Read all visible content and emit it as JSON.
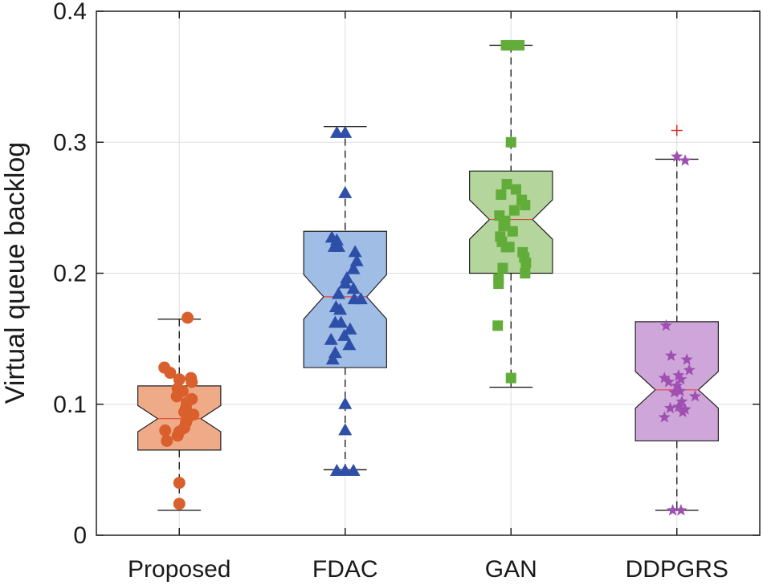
{
  "chart_data": {
    "type": "boxplot",
    "title": "",
    "xlabel": "",
    "ylabel": "Virtual queue backlog",
    "ylim": [
      0,
      0.4
    ],
    "yticks": [
      0,
      0.1,
      0.2,
      0.3,
      0.4
    ],
    "ytick_labels": [
      "0",
      "0.1",
      "0.2",
      "0.3",
      "0.4"
    ],
    "grid": true,
    "notched": true,
    "categories": [
      "Proposed",
      "FDAC",
      "GAN",
      "DDPGRS"
    ],
    "series": [
      {
        "category": "Proposed",
        "marker": "circle",
        "color": "#d9602c",
        "box_fill": "#efab88",
        "whisker_low": 0.019,
        "q1": 0.065,
        "median": 0.089,
        "q3": 0.114,
        "whisker_high": 0.165,
        "notch_low": 0.079,
        "notch_high": 0.099,
        "outliers": [],
        "points": [
          {
            "dx": 0.1,
            "y": 0.166
          },
          {
            "dx": -0.18,
            "y": 0.128
          },
          {
            "dx": -0.11,
            "y": 0.124
          },
          {
            "dx": 0.14,
            "y": 0.12
          },
          {
            "dx": 0.0,
            "y": 0.119
          },
          {
            "dx": 0.15,
            "y": 0.117
          },
          {
            "dx": -0.02,
            "y": 0.112
          },
          {
            "dx": 0.04,
            "y": 0.11
          },
          {
            "dx": -0.03,
            "y": 0.106
          },
          {
            "dx": 0.15,
            "y": 0.104
          },
          {
            "dx": 0.09,
            "y": 0.101
          },
          {
            "dx": 0.08,
            "y": 0.097
          },
          {
            "dx": 0.06,
            "y": 0.094
          },
          {
            "dx": 0.17,
            "y": 0.092
          },
          {
            "dx": 0.09,
            "y": 0.088
          },
          {
            "dx": 0.08,
            "y": 0.086
          },
          {
            "dx": 0.06,
            "y": 0.082
          },
          {
            "dx": -0.17,
            "y": 0.08
          },
          {
            "dx": 0.0,
            "y": 0.079
          },
          {
            "dx": -0.02,
            "y": 0.076
          },
          {
            "dx": -0.15,
            "y": 0.072
          },
          {
            "dx": 0.0,
            "y": 0.04
          },
          {
            "dx": 0.0,
            "y": 0.024
          }
        ]
      },
      {
        "category": "FDAC",
        "marker": "triangle",
        "color": "#2e4fa8",
        "box_fill": "#a0bde6",
        "whisker_low": 0.05,
        "q1": 0.128,
        "median": 0.182,
        "q3": 0.232,
        "whisker_high": 0.312,
        "notch_low": 0.165,
        "notch_high": 0.199,
        "outliers": [],
        "points": [
          {
            "dx": -0.1,
            "y": 0.307
          },
          {
            "dx": 0.0,
            "y": 0.307
          },
          {
            "dx": 0.0,
            "y": 0.261
          },
          {
            "dx": -0.16,
            "y": 0.227
          },
          {
            "dx": -0.1,
            "y": 0.225
          },
          {
            "dx": -0.13,
            "y": 0.22
          },
          {
            "dx": -0.08,
            "y": 0.22
          },
          {
            "dx": 0.12,
            "y": 0.216
          },
          {
            "dx": 0.14,
            "y": 0.209
          },
          {
            "dx": 0.1,
            "y": 0.203
          },
          {
            "dx": 0.02,
            "y": 0.196
          },
          {
            "dx": 0.0,
            "y": 0.192
          },
          {
            "dx": 0.1,
            "y": 0.188
          },
          {
            "dx": -0.08,
            "y": 0.184
          },
          {
            "dx": 0.11,
            "y": 0.18
          },
          {
            "dx": 0.19,
            "y": 0.18
          },
          {
            "dx": -0.11,
            "y": 0.174
          },
          {
            "dx": -0.06,
            "y": 0.172
          },
          {
            "dx": -0.12,
            "y": 0.162
          },
          {
            "dx": -0.05,
            "y": 0.162
          },
          {
            "dx": 0.06,
            "y": 0.157
          },
          {
            "dx": -0.01,
            "y": 0.152
          },
          {
            "dx": -0.17,
            "y": 0.149
          },
          {
            "dx": 0.05,
            "y": 0.145
          },
          {
            "dx": -0.12,
            "y": 0.139
          },
          {
            "dx": -0.15,
            "y": 0.134
          },
          {
            "dx": 0.0,
            "y": 0.1
          },
          {
            "dx": 0.0,
            "y": 0.08
          },
          {
            "dx": -0.1,
            "y": 0.049
          },
          {
            "dx": 0.0,
            "y": 0.049
          },
          {
            "dx": 0.1,
            "y": 0.049
          }
        ]
      },
      {
        "category": "GAN",
        "marker": "square",
        "color": "#62ad3a",
        "box_fill": "#b4d59b",
        "whisker_low": 0.113,
        "q1": 0.2,
        "median": 0.241,
        "q3": 0.278,
        "whisker_high": 0.374,
        "notch_low": 0.226,
        "notch_high": 0.256,
        "outliers": [],
        "points": [
          {
            "dx": -0.06,
            "y": 0.374
          },
          {
            "dx": -0.02,
            "y": 0.374
          },
          {
            "dx": 0.1,
            "y": 0.374
          },
          {
            "dx": 0.0,
            "y": 0.3
          },
          {
            "dx": -0.05,
            "y": 0.268
          },
          {
            "dx": 0.06,
            "y": 0.264
          },
          {
            "dx": -0.12,
            "y": 0.26
          },
          {
            "dx": 0.13,
            "y": 0.256
          },
          {
            "dx": 0.17,
            "y": 0.252
          },
          {
            "dx": 0.04,
            "y": 0.248
          },
          {
            "dx": -0.14,
            "y": 0.244
          },
          {
            "dx": -0.07,
            "y": 0.24
          },
          {
            "dx": -0.09,
            "y": 0.236
          },
          {
            "dx": 0.02,
            "y": 0.232
          },
          {
            "dx": -0.13,
            "y": 0.228
          },
          {
            "dx": -0.11,
            "y": 0.224
          },
          {
            "dx": -0.06,
            "y": 0.22
          },
          {
            "dx": -0.02,
            "y": 0.22
          },
          {
            "dx": 0.14,
            "y": 0.216
          },
          {
            "dx": 0.16,
            "y": 0.212
          },
          {
            "dx": 0.18,
            "y": 0.208
          },
          {
            "dx": 0.17,
            "y": 0.2
          },
          {
            "dx": -0.1,
            "y": 0.204
          },
          {
            "dx": -0.15,
            "y": 0.196
          },
          {
            "dx": -0.15,
            "y": 0.192
          },
          {
            "dx": -0.16,
            "y": 0.16
          },
          {
            "dx": 0.0,
            "y": 0.12
          }
        ]
      },
      {
        "category": "DDPGRS",
        "marker": "star",
        "color": "#9e4fb1",
        "box_fill": "#cfa6da",
        "whisker_low": 0.019,
        "q1": 0.072,
        "median": 0.111,
        "q3": 0.163,
        "whisker_high": 0.287,
        "notch_low": 0.097,
        "notch_high": 0.125,
        "outliers": [
          0.309
        ],
        "outlier_color": "#e02a2a",
        "points": [
          {
            "dx": 0.0,
            "y": 0.289
          },
          {
            "dx": 0.1,
            "y": 0.286
          },
          {
            "dx": -0.13,
            "y": 0.16
          },
          {
            "dx": -0.15,
            "y": 0.12
          },
          {
            "dx": -0.07,
            "y": 0.137
          },
          {
            "dx": 0.12,
            "y": 0.134
          },
          {
            "dx": 0.15,
            "y": 0.126
          },
          {
            "dx": 0.02,
            "y": 0.122
          },
          {
            "dx": 0.05,
            "y": 0.119
          },
          {
            "dx": -0.1,
            "y": 0.117
          },
          {
            "dx": 0.0,
            "y": 0.114
          },
          {
            "dx": 0.04,
            "y": 0.11
          },
          {
            "dx": 0.22,
            "y": 0.106
          },
          {
            "dx": -0.03,
            "y": 0.109
          },
          {
            "dx": 0.06,
            "y": 0.102
          },
          {
            "dx": -0.08,
            "y": 0.097
          },
          {
            "dx": 0.02,
            "y": 0.098
          },
          {
            "dx": 0.07,
            "y": 0.094
          },
          {
            "dx": -0.15,
            "y": 0.09
          },
          {
            "dx": 0.1,
            "y": 0.096
          },
          {
            "dx": -0.05,
            "y": 0.019
          },
          {
            "dx": 0.05,
            "y": 0.019
          }
        ]
      }
    ]
  }
}
